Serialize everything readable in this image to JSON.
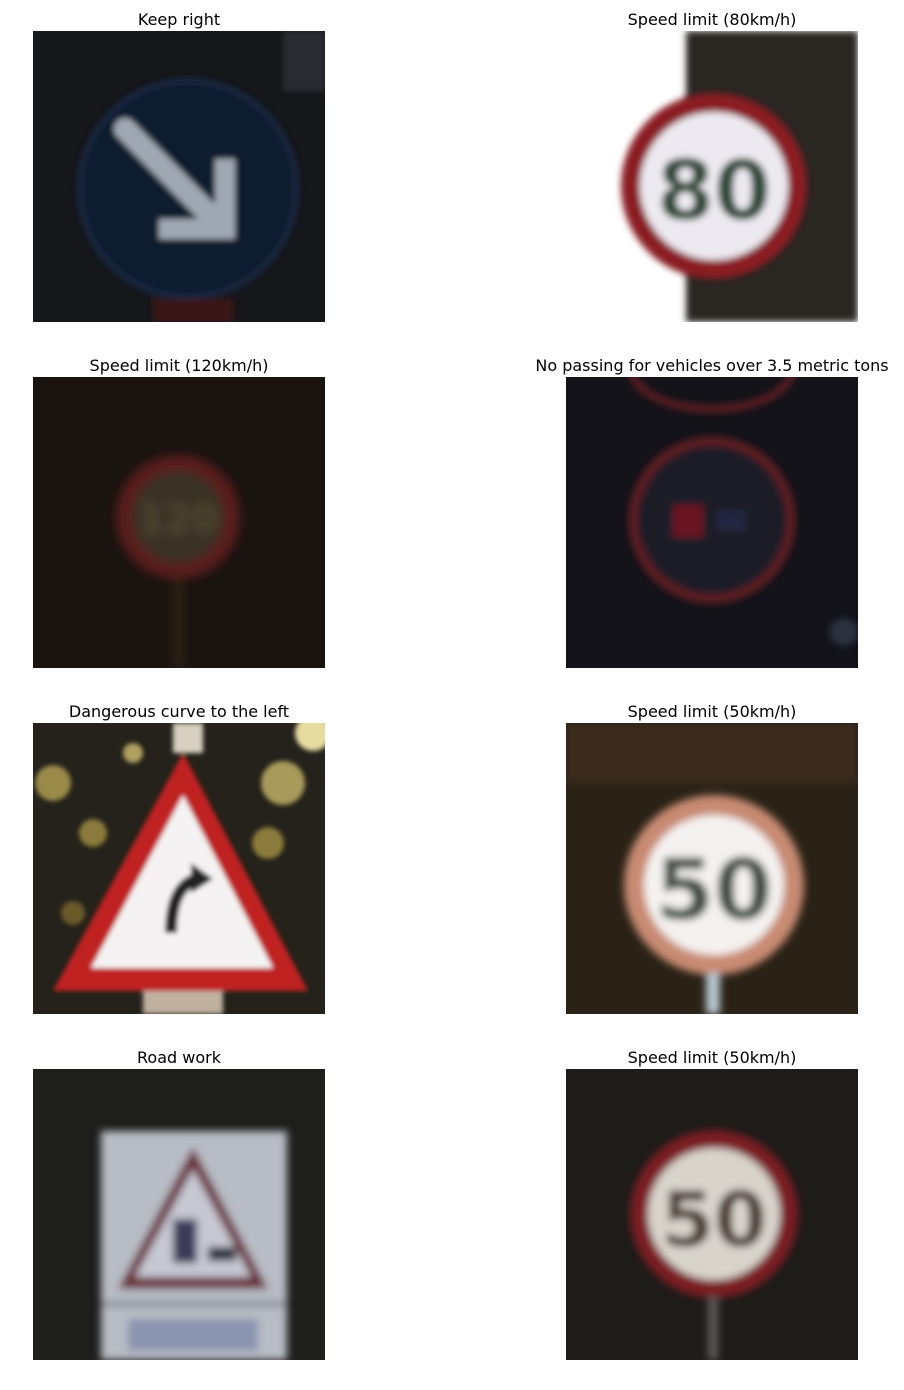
{
  "panels": [
    {
      "title": "Keep right"
    },
    {
      "title": "Speed limit (80km/h)"
    },
    {
      "title": "Speed limit (120km/h)"
    },
    {
      "title": "No passing for vehicles over 3.5 metric tons"
    },
    {
      "title": "Dangerous curve to the left"
    },
    {
      "title": "Speed limit (50km/h)"
    },
    {
      "title": "Road work"
    },
    {
      "title": "Speed limit (50km/h)"
    }
  ],
  "sign_text": {
    "speed_80": "80",
    "speed_120": "120",
    "speed_50a": "50",
    "speed_50b": "50"
  }
}
